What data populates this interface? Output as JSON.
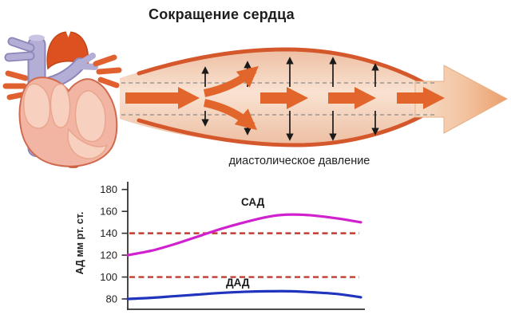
{
  "title": "Сокращение сердца",
  "vessel_diagram": {
    "caption": "диастолическое давление"
  },
  "chart_data": {
    "type": "line",
    "title": "",
    "xlabel": "",
    "ylabel": "АД мм рт. ст.",
    "yticks": [
      180,
      160,
      140,
      120,
      100,
      80
    ],
    "ylim": [
      70,
      190
    ],
    "xlim": [
      0,
      1
    ],
    "grid": false,
    "legend_position": "inline-labels",
    "series": [
      {
        "name": "САД",
        "color": "#d121ce",
        "x": [
          0,
          0.1,
          0.2,
          0.3,
          0.4,
          0.5,
          0.6,
          0.68,
          0.78,
          0.9,
          1
        ],
        "values": [
          120,
          124,
          130,
          137,
          144,
          150,
          155,
          157,
          156.5,
          153.5,
          150
        ]
      },
      {
        "name": "ДАД",
        "color": "#2134bd",
        "x": [
          0,
          0.1,
          0.2,
          0.3,
          0.4,
          0.5,
          0.6,
          0.7,
          0.8,
          0.9,
          1
        ],
        "values": [
          80,
          81,
          82.5,
          84,
          85.5,
          86.5,
          87,
          87,
          86,
          84.5,
          81.5
        ]
      }
    ],
    "reference_lines": [
      {
        "value": 140,
        "color": "#c23b32",
        "style": "dashed"
      },
      {
        "value": 100,
        "color": "#c23b32",
        "style": "dashed"
      }
    ]
  },
  "colors": {
    "axis": "#333333",
    "tick_text": "#222222",
    "vessel_wall": "#d5582c",
    "flow_arrow": "#e2652c",
    "pressure_arrow": "#1a1a1a",
    "dashed_guide": "#8a8a8a",
    "big_arrow_start": "#f7ddc8",
    "big_arrow_end": "#eb9f6a",
    "heart_body": "#f3b5a3",
    "heart_outline": "#cf6a4f",
    "heart_highlight": "#f8d0bf",
    "heart_vessel_purple": "#b3aed5",
    "heart_vessel_purple_outline": "#8d86ba",
    "heart_aorta": "#dd5020"
  }
}
